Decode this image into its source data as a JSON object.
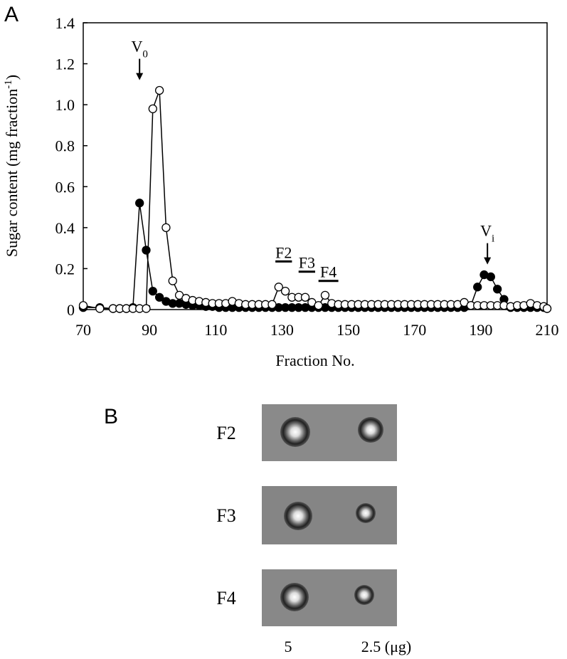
{
  "chart_data": {
    "type": "line",
    "panel_label": "A",
    "xlabel": "Fraction No.",
    "ylabel": [
      "Sugar content (mg fraction",
      "-1",
      ")"
    ],
    "xlim": [
      70,
      210
    ],
    "xticks": [
      70,
      90,
      110,
      130,
      150,
      170,
      190,
      210
    ],
    "ylim": [
      0,
      1.4
    ],
    "yticks": [
      0,
      0.2,
      0.4,
      0.6,
      0.8,
      {
        "value": 1,
        "label": "1.0"
      },
      1.2,
      1.4
    ],
    "x": [
      70,
      75,
      79,
      81,
      83,
      85,
      87,
      89,
      91,
      93,
      95,
      97,
      99,
      101,
      103,
      105,
      107,
      109,
      111,
      113,
      115,
      117,
      119,
      121,
      123,
      125,
      127,
      129,
      131,
      133,
      135,
      137,
      139,
      141,
      143,
      145,
      147,
      149,
      151,
      153,
      155,
      157,
      159,
      161,
      163,
      165,
      167,
      169,
      171,
      173,
      175,
      177,
      179,
      181,
      183,
      185,
      187,
      189,
      191,
      193,
      195,
      197,
      199,
      201,
      203,
      205,
      207,
      209,
      210
    ],
    "series": [
      {
        "color": "#000000",
        "marker_fill": "#000000",
        "values": [
          0.01,
          0.01,
          0.005,
          0.005,
          0.005,
          0.01,
          0.52,
          0.29,
          0.09,
          0.06,
          0.04,
          0.03,
          0.03,
          0.025,
          0.02,
          0.02,
          0.015,
          0.015,
          0.01,
          0.01,
          0.01,
          0.01,
          0.01,
          0.01,
          0.01,
          0.01,
          0.01,
          0.01,
          0.01,
          0.01,
          0.01,
          0.01,
          0.01,
          0.01,
          0.01,
          0.01,
          0.01,
          0.01,
          0.01,
          0.01,
          0.01,
          0.01,
          0.01,
          0.01,
          0.01,
          0.01,
          0.01,
          0.01,
          0.01,
          0.01,
          0.01,
          0.01,
          0.01,
          0.01,
          0.01,
          0.01,
          0.02,
          0.11,
          0.17,
          0.16,
          0.1,
          0.05,
          0.01,
          0.01,
          0.01,
          0.01,
          0.01,
          0.01,
          0.005
        ]
      },
      {
        "color": "#000000",
        "marker_fill": "#ffffff",
        "values": [
          0.02,
          0.005,
          0.005,
          0.005,
          0.005,
          0.005,
          0.005,
          0.005,
          0.98,
          1.07,
          0.4,
          0.14,
          0.07,
          0.055,
          0.045,
          0.04,
          0.035,
          0.03,
          0.03,
          0.03,
          0.04,
          0.03,
          0.025,
          0.025,
          0.025,
          0.025,
          0.025,
          0.11,
          0.09,
          0.06,
          0.06,
          0.06,
          0.035,
          0.02,
          0.07,
          0.03,
          0.025,
          0.025,
          0.025,
          0.025,
          0.025,
          0.025,
          0.025,
          0.025,
          0.025,
          0.025,
          0.025,
          0.025,
          0.025,
          0.025,
          0.025,
          0.025,
          0.025,
          0.025,
          0.025,
          0.035,
          0.02,
          0.02,
          0.02,
          0.02,
          0.02,
          0.02,
          0.015,
          0.02,
          0.02,
          0.03,
          0.02,
          0.015,
          0.005
        ]
      }
    ],
    "arrows": [
      {
        "text": "V",
        "subscript": "0",
        "x": 87,
        "y": 1.12
      },
      {
        "text": "V",
        "subscript": "i",
        "x": 192,
        "y": 0.22
      }
    ],
    "fractions": [
      {
        "label": "F2",
        "range": [
          128,
          133
        ],
        "y": 0.235
      },
      {
        "label": "F3",
        "range": [
          135,
          140
        ],
        "y": 0.185
      },
      {
        "label": "F4",
        "range": [
          141,
          147
        ],
        "y": 0.14
      }
    ]
  },
  "panel_b": {
    "panel_label": "B",
    "rows": [
      "F2",
      "F3",
      "F4"
    ],
    "columns": [
      "5",
      "2.5 (μg)"
    ]
  }
}
